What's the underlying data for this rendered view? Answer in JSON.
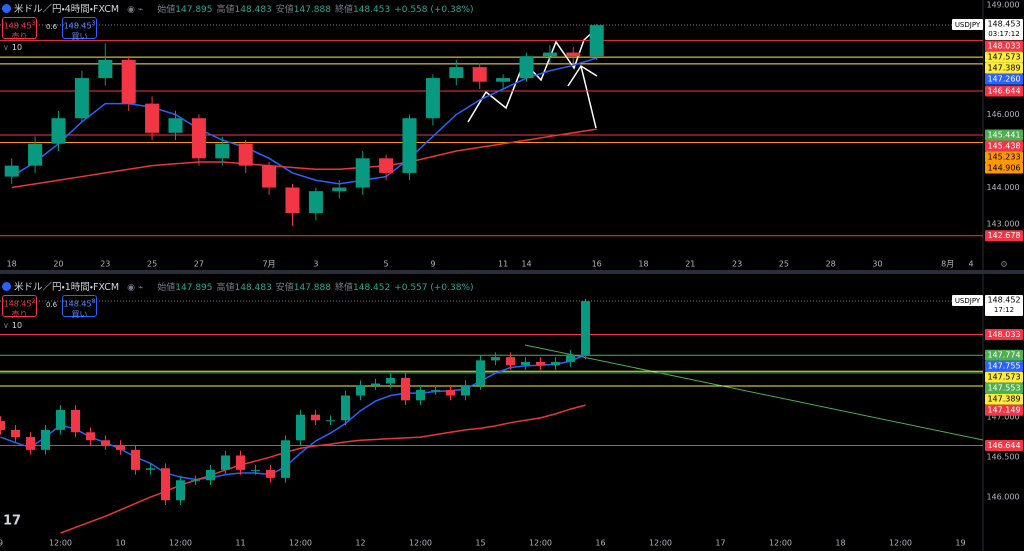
{
  "chart_data": [
    {
      "type": "candlestick",
      "title": "米ドル／円・4時間・FXCM",
      "ohlc": [
        {
          "label": "始値",
          "value": "147.895"
        },
        {
          "label": "高値",
          "value": "148.483"
        },
        {
          "label": "安値",
          "value": "147.888"
        },
        {
          "label": "終値",
          "value": "148.453"
        }
      ],
      "change": "+0.558 (+0.38%)",
      "sell": {
        "price": "148.45",
        "sup": "3",
        "label": "売り"
      },
      "spread": "0.6",
      "buy": {
        "price": "148.45",
        "sup": "3",
        "label": "買い"
      },
      "badge": "10",
      "symbol": "USDJPY",
      "last_price": 148.453,
      "countdown": "03:17:12",
      "up_color": "#089981",
      "down_color": "#f23645",
      "categories": [
        "18",
        null,
        "20",
        null,
        "23",
        null,
        "25",
        null,
        "27",
        null,
        null,
        "7月",
        null,
        "3",
        null,
        null,
        "5",
        null,
        "9",
        null,
        null,
        "11",
        "14",
        null,
        null,
        "16",
        null,
        "18",
        null,
        "21",
        null,
        "23",
        null,
        "25",
        null,
        "28",
        null,
        "30",
        null,
        null,
        "8月",
        "4"
      ],
      "open": [
        144.3,
        144.6,
        145.2,
        145.9,
        147.0,
        147.5,
        146.3,
        145.5,
        145.9,
        144.8,
        145.2,
        144.6,
        144.0,
        143.3,
        143.9,
        144.0,
        144.8,
        144.4,
        145.9,
        147.0,
        147.3,
        146.9,
        147.0,
        147.6,
        147.7,
        147.6,
        null,
        null,
        null,
        null,
        null,
        null,
        null,
        null,
        null,
        null,
        null,
        null,
        null,
        null,
        null,
        null
      ],
      "high": [
        144.8,
        145.4,
        146.1,
        147.2,
        147.95,
        147.6,
        146.5,
        146.1,
        146.0,
        145.4,
        145.3,
        144.7,
        144.1,
        144.0,
        144.2,
        145.0,
        144.9,
        146.0,
        147.1,
        147.5,
        147.4,
        147.1,
        147.7,
        147.9,
        147.85,
        148.48,
        null,
        null,
        null,
        null,
        null,
        null,
        null,
        null,
        null,
        null,
        null,
        null,
        null,
        null,
        null,
        null
      ],
      "low": [
        144.1,
        144.4,
        145.0,
        145.8,
        146.8,
        146.1,
        145.3,
        145.3,
        144.6,
        144.6,
        144.4,
        143.8,
        142.95,
        143.1,
        143.7,
        143.8,
        144.2,
        144.2,
        145.7,
        146.8,
        146.7,
        146.7,
        146.9,
        147.4,
        147.4,
        147.5,
        null,
        null,
        null,
        null,
        null,
        null,
        null,
        null,
        null,
        null,
        null,
        null,
        null,
        null,
        null,
        null
      ],
      "close": [
        144.6,
        145.2,
        145.9,
        147.0,
        147.5,
        146.3,
        145.5,
        145.9,
        144.8,
        145.2,
        144.6,
        144.0,
        143.3,
        143.9,
        144.0,
        144.8,
        144.4,
        145.9,
        147.0,
        147.3,
        146.9,
        147.0,
        147.6,
        147.7,
        147.6,
        148.45,
        null,
        null,
        null,
        null,
        null,
        null,
        null,
        null,
        null,
        null,
        null,
        null,
        null,
        null,
        null,
        null
      ],
      "series": [
        {
          "color": "#2962ff",
          "values": [
            144.3,
            144.7,
            145.2,
            145.8,
            146.3,
            146.3,
            146.2,
            146.0,
            145.6,
            145.3,
            145.1,
            144.8,
            144.4,
            144.2,
            144.1,
            144.2,
            144.3,
            144.8,
            145.4,
            146.0,
            146.4,
            146.7,
            147.0,
            147.2,
            147.35,
            147.55,
            null,
            null,
            null,
            null,
            null,
            null,
            null,
            null,
            null,
            null,
            null,
            null,
            null,
            null,
            null,
            null
          ]
        },
        {
          "color": "#e53935",
          "values": [
            144.0,
            144.1,
            144.2,
            144.3,
            144.4,
            144.5,
            144.6,
            144.65,
            144.7,
            144.7,
            144.65,
            144.6,
            144.55,
            144.5,
            144.5,
            144.55,
            144.6,
            144.7,
            144.85,
            145.0,
            145.1,
            145.2,
            145.3,
            145.4,
            145.5,
            145.6,
            null,
            null,
            null,
            null,
            null,
            null,
            null,
            null,
            null,
            null,
            null,
            null,
            null,
            null,
            null,
            null
          ]
        }
      ],
      "levels": [
        {
          "value": 148.033,
          "color": "#f23645"
        },
        {
          "value": 147.573,
          "color": "#ffeb3b"
        },
        {
          "value": 147.389,
          "color": "#ffeb3b"
        },
        {
          "value": 147.26,
          "label": "147.260",
          "color": "#2962ff",
          "line": false
        },
        {
          "value": 146.644,
          "color": "#f23645"
        },
        {
          "value": 145.441,
          "color": "#4caf50",
          "line": false
        },
        {
          "value": 145.438,
          "color": "#f23645"
        },
        {
          "value": 145.233,
          "color": "#ff9800"
        },
        {
          "value": 144.906,
          "color": "#ff9800",
          "line": false
        },
        {
          "value": 142.678,
          "color": "#f23645"
        }
      ],
      "ylim": [
        142.15,
        149.14
      ],
      "yticks": [
        {
          "value": 149,
          "label": "149.000"
        },
        {
          "value": 146,
          "label": "146.000"
        },
        {
          "value": 144,
          "label": "144.000"
        },
        {
          "value": 143,
          "label": "143.000"
        }
      ]
    },
    {
      "type": "candlestick",
      "title": "米ドル／円・1時間・FXCM",
      "ohlc": [
        {
          "label": "始値",
          "value": "147.895"
        },
        {
          "label": "高値",
          "value": "148.483"
        },
        {
          "label": "安値",
          "value": "147.888"
        },
        {
          "label": "終値",
          "value": "148.452"
        }
      ],
      "change": "+0.557 (+0.38%)",
      "sell": {
        "price": "148.45",
        "sup": "2",
        "label": "売り"
      },
      "spread": "0.6",
      "buy": {
        "price": "148.45",
        "sup": "8",
        "label": "買い"
      },
      "badge": "10",
      "symbol": "USDJPY",
      "last_price": 148.452,
      "countdown": "17:12",
      "up_color": "#089981",
      "down_color": "#f23645",
      "categories": [
        "9",
        null,
        null,
        null,
        "12:00",
        null,
        null,
        null,
        "10",
        null,
        null,
        null,
        "12:00",
        null,
        null,
        null,
        "11",
        null,
        null,
        null,
        "12:00",
        null,
        null,
        null,
        "12",
        null,
        null,
        null,
        "12:00",
        null,
        null,
        null,
        "15",
        null,
        null,
        null,
        "12:00",
        null,
        null,
        null,
        "16",
        null,
        null,
        null,
        "12:00",
        null,
        null,
        null,
        "17",
        null,
        null,
        null,
        "12:00",
        null,
        null,
        null,
        "18",
        null,
        null,
        null,
        "12:00",
        null,
        null,
        null,
        "19",
        null
      ],
      "open": [
        146.95,
        146.84,
        146.75,
        146.59,
        146.84,
        147.09,
        146.81,
        146.71,
        146.65,
        146.59,
        146.34,
        146.36,
        145.96,
        146.21,
        146.21,
        146.34,
        146.52,
        146.34,
        146.34,
        146.24,
        146.71,
        147.03,
        146.96,
        146.96,
        147.27,
        147.4,
        147.42,
        147.49,
        147.21,
        147.34,
        147.34,
        147.27,
        147.4,
        147.71,
        147.75,
        147.65,
        147.69,
        147.65,
        147.69,
        147.78,
        null,
        null,
        null,
        null,
        null,
        null,
        null,
        null,
        null,
        null,
        null,
        null,
        null,
        null,
        null,
        null,
        null,
        null,
        null,
        null,
        null,
        null,
        null,
        null,
        null,
        null
      ],
      "high": [
        147.01,
        146.9,
        146.81,
        146.9,
        147.15,
        147.15,
        146.87,
        146.77,
        146.71,
        146.65,
        146.42,
        146.42,
        146.27,
        146.27,
        146.4,
        146.58,
        146.58,
        146.4,
        146.4,
        146.77,
        147.09,
        147.09,
        147.02,
        147.33,
        147.46,
        147.48,
        147.55,
        147.55,
        147.4,
        147.4,
        147.4,
        147.46,
        147.77,
        147.81,
        147.81,
        147.75,
        147.75,
        147.75,
        147.84,
        148.48,
        null,
        null,
        null,
        null,
        null,
        null,
        null,
        null,
        null,
        null,
        null,
        null,
        null,
        null,
        null,
        null,
        null,
        null,
        null,
        null,
        null,
        null,
        null,
        null,
        null,
        null
      ],
      "low": [
        146.78,
        146.69,
        146.53,
        146.53,
        146.78,
        146.75,
        146.65,
        146.59,
        146.53,
        146.28,
        146.28,
        145.9,
        145.9,
        146.15,
        146.15,
        146.28,
        146.28,
        146.28,
        146.18,
        146.18,
        146.65,
        146.9,
        146.9,
        146.9,
        147.21,
        147.34,
        147.36,
        147.15,
        147.15,
        147.28,
        147.21,
        147.21,
        147.34,
        147.65,
        147.59,
        147.59,
        147.59,
        147.59,
        147.63,
        147.72,
        null,
        null,
        null,
        null,
        null,
        null,
        null,
        null,
        null,
        null,
        null,
        null,
        null,
        null,
        null,
        null,
        null,
        null,
        null,
        null,
        null,
        null,
        null,
        null,
        null,
        null
      ],
      "close": [
        146.84,
        146.75,
        146.59,
        146.84,
        147.09,
        146.81,
        146.71,
        146.65,
        146.59,
        146.34,
        146.36,
        145.96,
        146.21,
        146.21,
        146.34,
        146.52,
        146.34,
        146.34,
        146.24,
        146.71,
        147.03,
        146.96,
        146.96,
        147.27,
        147.4,
        147.42,
        147.49,
        147.21,
        147.34,
        147.34,
        147.27,
        147.4,
        147.71,
        147.75,
        147.65,
        147.69,
        147.65,
        147.69,
        147.78,
        148.45,
        null,
        null,
        null,
        null,
        null,
        null,
        null,
        null,
        null,
        null,
        null,
        null,
        null,
        null,
        null,
        null,
        null,
        null,
        null,
        null,
        null,
        null,
        null,
        null,
        null,
        null
      ],
      "series": [
        {
          "color": "#2962ff",
          "values": [
            146.75,
            146.68,
            146.62,
            146.75,
            146.9,
            146.85,
            146.75,
            146.68,
            146.6,
            146.5,
            146.42,
            146.3,
            146.25,
            146.22,
            146.24,
            146.28,
            146.3,
            146.3,
            146.28,
            146.38,
            146.55,
            146.7,
            146.8,
            146.92,
            147.08,
            147.2,
            147.27,
            147.3,
            147.3,
            147.32,
            147.33,
            147.35,
            147.45,
            147.55,
            147.62,
            147.64,
            147.65,
            147.66,
            147.7,
            147.78,
            null,
            null,
            null,
            null,
            null,
            null,
            null,
            null,
            null,
            null,
            null,
            null,
            null,
            null,
            null,
            null,
            null,
            null,
            null,
            null,
            null,
            null,
            null,
            null,
            null,
            null
          ]
        },
        {
          "color": "#e53935",
          "values": [
            null,
            null,
            null,
            null,
            145.55,
            145.62,
            145.69,
            145.76,
            145.84,
            145.92,
            146.0,
            146.07,
            146.15,
            146.21,
            146.27,
            146.34,
            146.4,
            146.45,
            146.5,
            146.56,
            146.61,
            146.64,
            146.66,
            146.69,
            146.71,
            146.72,
            146.73,
            146.74,
            146.75,
            146.78,
            146.81,
            146.84,
            146.86,
            146.89,
            146.93,
            146.96,
            146.99,
            147.04,
            147.1,
            147.15,
            null,
            null,
            null,
            null,
            null,
            null,
            null,
            null,
            null,
            null,
            null,
            null,
            null,
            null,
            null,
            null,
            null,
            null,
            null,
            null,
            null,
            null,
            null,
            null,
            null,
            null
          ]
        }
      ],
      "levels": [
        {
          "value": 148.033,
          "color": "#f23645"
        },
        {
          "value": 147.774,
          "color": "#4caf50"
        },
        {
          "value": 147.755,
          "color": "#2962ff",
          "line": false
        },
        {
          "value": 147.573,
          "color": "#ffeb3b"
        },
        {
          "value": 147.553,
          "color": "#4caf50"
        },
        {
          "value": 147.389,
          "color": "#ffeb3b"
        },
        {
          "value": 147.149,
          "color": "#f23645",
          "line": false
        },
        {
          "value": 146.644,
          "color": "#f23645"
        }
      ],
      "ylim": [
        145.525,
        148.74
      ],
      "yticks": [
        {
          "value": 147,
          "label": "147.000"
        },
        {
          "value": 146.5,
          "label": "146.500"
        },
        {
          "value": 146,
          "label": "146.000"
        }
      ]
    }
  ]
}
